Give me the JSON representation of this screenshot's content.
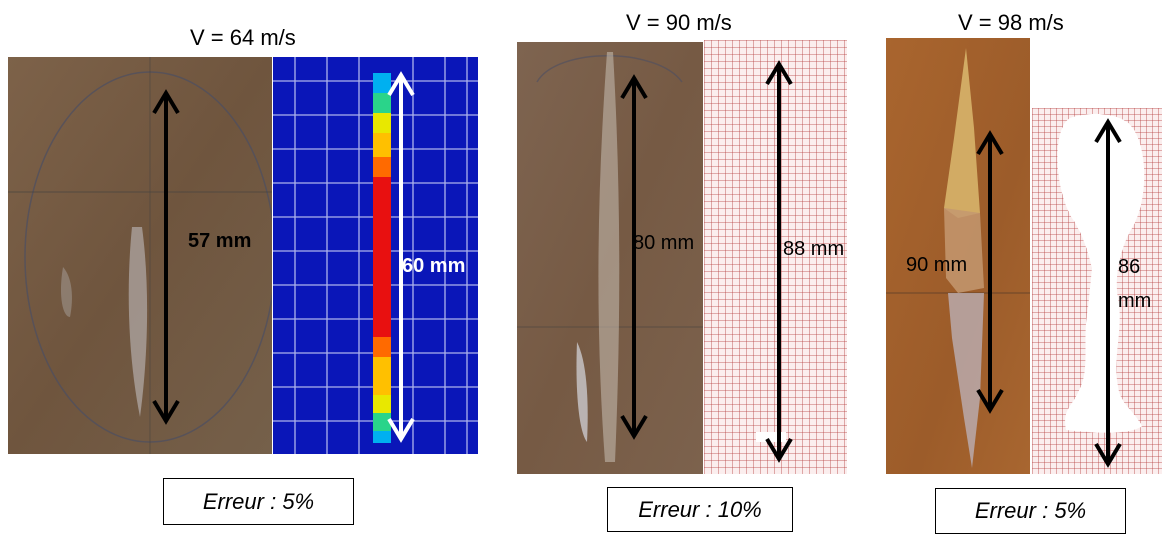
{
  "figure": {
    "panels": [
      {
        "velocity_label": "V = 64 m/s",
        "photo_length": "57 mm",
        "simulation_length": "60 mm",
        "error_label": "Erreur : 5%"
      },
      {
        "velocity_label": "V = 90 m/s",
        "photo_length": "80 mm",
        "simulation_length": "88 mm",
        "error_label": "Erreur : 10%"
      },
      {
        "velocity_label": "V = 98 m/s",
        "photo_length": "90 mm",
        "simulation_length_line1": "86",
        "simulation_length_line2": "mm",
        "error_label": "Erreur : 5%"
      }
    ]
  },
  "colors": {
    "panel_brown": "#7a5e45",
    "photo3_brown": "#a0602c",
    "sim_blue": "#0a16b8",
    "mesh_red": "#b43a3a",
    "arrow_black": "#000000",
    "arrow_white": "#ffffff"
  }
}
